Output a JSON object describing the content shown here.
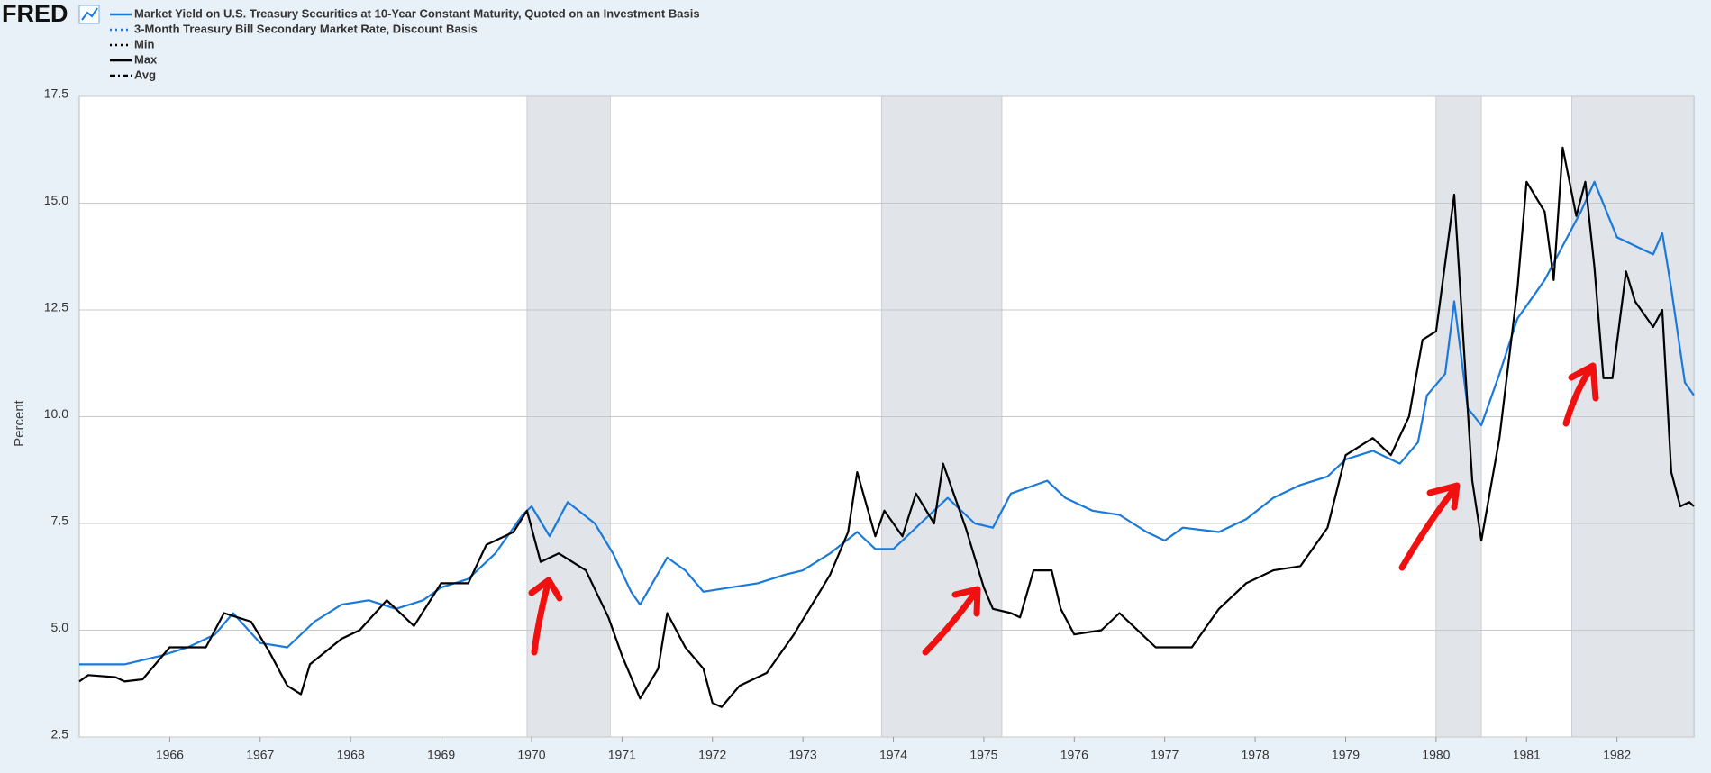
{
  "chart_data": {
    "type": "line",
    "brand": "FRED",
    "ylabel": "Percent",
    "xlim": [
      1965.0,
      1982.85
    ],
    "xticks": [
      1966,
      1967,
      1968,
      1969,
      1970,
      1971,
      1972,
      1973,
      1974,
      1975,
      1976,
      1977,
      1978,
      1979,
      1980,
      1981,
      1982
    ],
    "ylim": [
      2.5,
      17.5
    ],
    "yticks": [
      2.5,
      {
        "value": 5,
        "label": "5.0"
      },
      7.5,
      {
        "value": 10,
        "label": "10.0"
      },
      12.5,
      {
        "value": 15,
        "label": "15.0"
      },
      17.5
    ],
    "grid": true,
    "recessions": [
      [
        1969.95,
        1970.87
      ],
      [
        1973.87,
        1975.2
      ],
      [
        1980.0,
        1980.5
      ],
      [
        1981.5,
        1982.87
      ]
    ],
    "recession_color": "#e1e5ea",
    "series": [
      {
        "name": "Market Yield on U.S. Treasury Securities at 10-Year Constant Maturity, Quoted on an Investment Basis",
        "color": "#1a7adb",
        "legend_color": "#1a7adb",
        "legend_style": "solid",
        "x": [
          1965.0,
          1965.5,
          1965.9,
          1966.2,
          1966.5,
          1966.7,
          1967.0,
          1967.3,
          1967.6,
          1967.9,
          1968.2,
          1968.5,
          1968.8,
          1969.0,
          1969.3,
          1969.6,
          1969.9,
          1970.0,
          1970.2,
          1970.4,
          1970.7,
          1970.9,
          1971.1,
          1971.2,
          1971.5,
          1971.7,
          1971.9,
          1972.2,
          1972.5,
          1972.8,
          1973.0,
          1973.3,
          1973.6,
          1973.8,
          1974.0,
          1974.3,
          1974.6,
          1974.9,
          1975.1,
          1975.3,
          1975.7,
          1975.9,
          1976.2,
          1976.5,
          1976.8,
          1977.0,
          1977.2,
          1977.6,
          1977.9,
          1978.2,
          1978.5,
          1978.8,
          1979.0,
          1979.3,
          1979.6,
          1979.8,
          1979.9,
          1980.1,
          1980.2,
          1980.35,
          1980.5,
          1980.7,
          1980.9,
          1981.0,
          1981.2,
          1981.4,
          1981.6,
          1981.75,
          1982.0,
          1982.2,
          1982.4,
          1982.5,
          1982.6,
          1982.75,
          1982.85
        ],
        "values": [
          4.2,
          4.2,
          4.4,
          4.6,
          4.9,
          5.4,
          4.7,
          4.6,
          5.2,
          5.6,
          5.7,
          5.5,
          5.7,
          6.0,
          6.2,
          6.8,
          7.7,
          7.9,
          7.2,
          8.0,
          7.5,
          6.8,
          5.9,
          5.6,
          6.7,
          6.4,
          5.9,
          6.0,
          6.1,
          6.3,
          6.4,
          6.8,
          7.3,
          6.9,
          6.9,
          7.5,
          8.1,
          7.5,
          7.4,
          8.2,
          8.5,
          8.1,
          7.8,
          7.7,
          7.3,
          7.1,
          7.4,
          7.3,
          7.6,
          8.1,
          8.4,
          8.6,
          9.0,
          9.2,
          8.9,
          9.4,
          10.5,
          11.0,
          12.7,
          10.2,
          9.8,
          11.0,
          12.3,
          12.6,
          13.2,
          14.0,
          14.8,
          15.5,
          14.2,
          14.0,
          13.8,
          14.3,
          13.0,
          10.8,
          10.5
        ]
      },
      {
        "name": "3-Month Treasury Bill Secondary Market Rate, Discount Basis",
        "color": "#000000",
        "legend_color": "#1a7adb",
        "legend_style": "dotted",
        "x": [
          1965.0,
          1965.1,
          1965.4,
          1965.5,
          1965.7,
          1966.0,
          1966.4,
          1966.6,
          1966.9,
          1967.1,
          1967.3,
          1967.45,
          1967.55,
          1967.9,
          1968.1,
          1968.4,
          1968.7,
          1969.0,
          1969.3,
          1969.5,
          1969.8,
          1969.95,
          1970.1,
          1970.3,
          1970.6,
          1970.85,
          1971.0,
          1971.2,
          1971.4,
          1971.5,
          1971.7,
          1971.9,
          1972.0,
          1972.1,
          1972.3,
          1972.6,
          1972.9,
          1973.1,
          1973.3,
          1973.5,
          1973.6,
          1973.8,
          1973.9,
          1974.1,
          1974.25,
          1974.45,
          1974.55,
          1974.8,
          1975.0,
          1975.1,
          1975.3,
          1975.4,
          1975.55,
          1975.75,
          1975.85,
          1976.0,
          1976.3,
          1976.5,
          1976.9,
          1977.0,
          1977.3,
          1977.6,
          1977.9,
          1978.2,
          1978.5,
          1978.8,
          1979.0,
          1979.3,
          1979.5,
          1979.7,
          1979.85,
          1980.0,
          1980.2,
          1980.4,
          1980.5,
          1980.7,
          1980.9,
          1981.0,
          1981.2,
          1981.3,
          1981.4,
          1981.55,
          1981.65,
          1981.75,
          1981.85,
          1981.95,
          1982.1,
          1982.2,
          1982.4,
          1982.5,
          1982.6,
          1982.7,
          1982.8,
          1982.85
        ],
        "values": [
          3.8,
          3.95,
          3.9,
          3.8,
          3.85,
          4.6,
          4.6,
          5.4,
          5.2,
          4.5,
          3.7,
          3.5,
          4.2,
          4.8,
          5.0,
          5.7,
          5.1,
          6.1,
          6.1,
          7.0,
          7.3,
          7.8,
          6.6,
          6.8,
          6.4,
          5.3,
          4.4,
          3.4,
          4.1,
          5.4,
          4.6,
          4.1,
          3.3,
          3.2,
          3.7,
          4.0,
          4.9,
          5.6,
          6.3,
          7.3,
          8.7,
          7.2,
          7.8,
          7.2,
          8.2,
          7.5,
          8.9,
          7.4,
          6.0,
          5.5,
          5.4,
          5.3,
          6.4,
          6.4,
          5.5,
          4.9,
          5.0,
          5.4,
          4.6,
          4.6,
          4.6,
          5.5,
          6.1,
          6.4,
          6.5,
          7.4,
          9.1,
          9.5,
          9.1,
          10.0,
          11.8,
          12.0,
          15.2,
          8.5,
          7.1,
          9.5,
          13.0,
          15.5,
          14.8,
          13.2,
          16.3,
          14.7,
          15.5,
          13.5,
          10.9,
          10.9,
          13.4,
          12.7,
          12.1,
          12.5,
          8.7,
          7.9,
          8.0,
          7.9
        ]
      }
    ],
    "legend_extra": [
      {
        "name": "Min",
        "color": "#000000",
        "style": "dotted"
      },
      {
        "name": "Max",
        "color": "#000000",
        "style": "solid"
      },
      {
        "name": "Avg",
        "color": "#000000",
        "style": "dashdot"
      }
    ]
  }
}
